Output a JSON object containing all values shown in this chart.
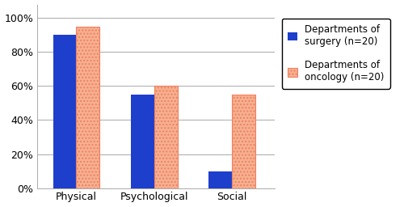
{
  "categories": [
    "Physical",
    "Psychological",
    "Social"
  ],
  "surgery_values": [
    0.9,
    0.55,
    0.1
  ],
  "oncology_values": [
    0.95,
    0.6,
    0.55
  ],
  "surgery_color": "#1E3ECC",
  "oncology_color": "#F08060",
  "oncology_face_color": "#F5B090",
  "surgery_label": "Departments of\nsurgery (n=20)",
  "oncology_label": "Departments of\noncology (n=20)",
  "ylim": [
    0,
    1.08
  ],
  "yticks": [
    0.0,
    0.2,
    0.4,
    0.6,
    0.8,
    1.0
  ],
  "yticklabels": [
    "0%",
    "20%",
    "40%",
    "60%",
    "80%",
    "100%"
  ],
  "bar_width": 0.3,
  "background_color": "#ffffff",
  "hatch_oncology": "....",
  "grid_color": "#aaaaaa",
  "tick_fontsize": 9,
  "legend_fontsize": 8.5
}
